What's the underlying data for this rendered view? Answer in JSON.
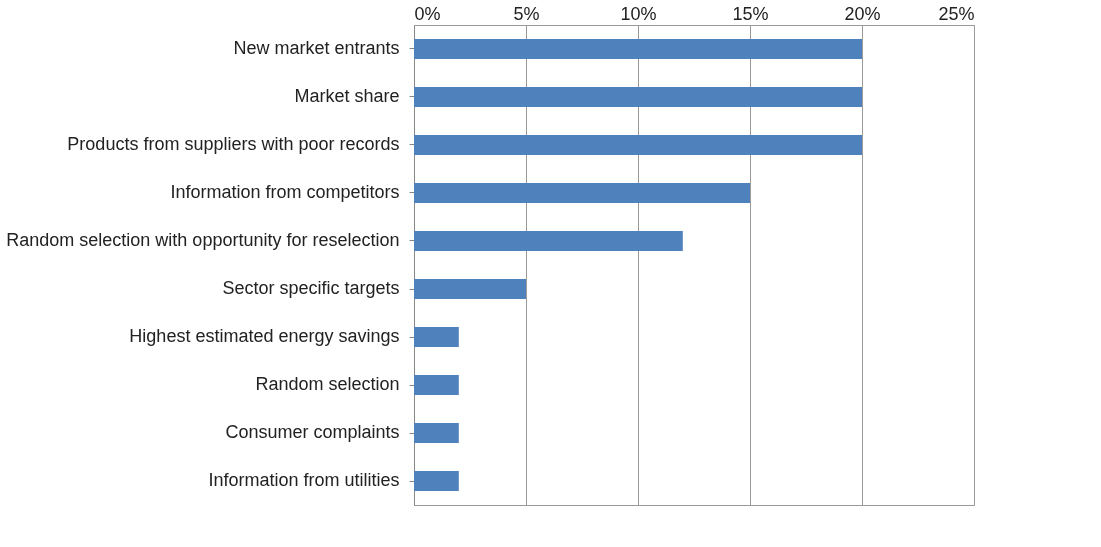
{
  "chart_data": {
    "type": "bar",
    "orientation": "horizontal",
    "categories": [
      "New market entrants",
      "Market share",
      "Products from suppliers with poor records",
      "Information from competitors",
      "Random selection with opportunity for reselection",
      "Sector specific targets",
      "Highest estimated energy savings",
      "Random selection",
      "Consumer complaints",
      "Information from utilities"
    ],
    "values": [
      20,
      20,
      20,
      15,
      12,
      5,
      2,
      2,
      2,
      2
    ],
    "color": "#4f81bd",
    "xlim": [
      0,
      25
    ],
    "xticks": [
      {
        "value": 0,
        "label": "0%"
      },
      {
        "value": 5,
        "label": "5%"
      },
      {
        "value": 10,
        "label": "10%"
      },
      {
        "value": 15,
        "label": "15%"
      },
      {
        "value": 20,
        "label": "20%"
      },
      {
        "value": 25,
        "label": "25%"
      }
    ],
    "grid": "x"
  }
}
